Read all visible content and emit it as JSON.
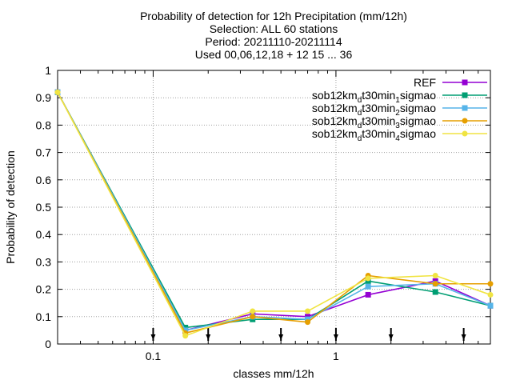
{
  "chart_data": {
    "type": "line",
    "title_lines": [
      "Probability of detection  for 12h Precipitation (mm/12h)",
      "Selection: ALL     60 stations",
      "Period: 20211110-20211114",
      "Used 00,06,12,18 + 12 15 ... 36"
    ],
    "xlabel": "classes mm/12h",
    "ylabel": "Probability of detection",
    "x_scale": "log",
    "xlim": [
      0.03,
      7
    ],
    "ylim": [
      0,
      1
    ],
    "x_ticks": [
      {
        "value": 0.1,
        "label": "0.1"
      },
      {
        "value": 1,
        "label": "1"
      }
    ],
    "y_ticks": [
      {
        "value": 0,
        "label": "0"
      },
      {
        "value": 0.1,
        "label": "0.1"
      },
      {
        "value": 0.2,
        "label": "0.2"
      },
      {
        "value": 0.3,
        "label": "0.3"
      },
      {
        "value": 0.4,
        "label": "0.4"
      },
      {
        "value": 0.5,
        "label": "0.5"
      },
      {
        "value": 0.6,
        "label": "0.6"
      },
      {
        "value": 0.7,
        "label": "0.7"
      },
      {
        "value": 0.8,
        "label": "0.8"
      },
      {
        "value": 0.9,
        "label": "0.9"
      },
      {
        "value": 1,
        "label": "1"
      }
    ],
    "grid": true,
    "legend_position": "top-right",
    "x": [
      0.03,
      0.15,
      0.35,
      0.7,
      1.5,
      3.5,
      7
    ],
    "class_markers": [
      0.1,
      0.2,
      0.5,
      1,
      2,
      5
    ],
    "series": [
      {
        "name": "REF",
        "name_parts": [],
        "color": "#9400d3",
        "marker": "square",
        "values": [
          0.92,
          0.05,
          0.11,
          0.1,
          0.18,
          0.23,
          0.14
        ]
      },
      {
        "name": "sob12km_d_t30min_1_sigmao",
        "name_parts": [
          {
            "t": "sob12km",
            "s": ""
          },
          {
            "t": "d",
            "s": "sub"
          },
          {
            "t": "t30min",
            "s": ""
          },
          {
            "t": "1",
            "s": "sub"
          },
          {
            "t": "sigmao",
            "s": ""
          }
        ],
        "color": "#009e73",
        "marker": "square",
        "values": [
          0.92,
          0.06,
          0.09,
          0.09,
          0.23,
          0.19,
          0.14
        ]
      },
      {
        "name": "sob12km_d_t30min_2_sigmao",
        "name_parts": [
          {
            "t": "sob12km",
            "s": ""
          },
          {
            "t": "d",
            "s": "sub"
          },
          {
            "t": "t30min",
            "s": ""
          },
          {
            "t": "2",
            "s": "sub"
          },
          {
            "t": "sigmao",
            "s": ""
          }
        ],
        "color": "#56b4e9",
        "marker": "square",
        "values": [
          0.92,
          0.05,
          0.1,
          0.09,
          0.21,
          0.22,
          0.14
        ]
      },
      {
        "name": "sob12km_d_t30min_3_sigmao",
        "name_parts": [
          {
            "t": "sob12km",
            "s": ""
          },
          {
            "t": "d",
            "s": "sub"
          },
          {
            "t": "t30min",
            "s": ""
          },
          {
            "t": "3",
            "s": "sub"
          },
          {
            "t": "sigmao",
            "s": ""
          }
        ],
        "color": "#e69f00",
        "marker": "circle",
        "values": [
          0.92,
          0.04,
          0.1,
          0.08,
          0.25,
          0.22,
          0.22
        ]
      },
      {
        "name": "sob12km_d_t30min_4_sigmao",
        "name_parts": [
          {
            "t": "sob12km",
            "s": ""
          },
          {
            "t": "d",
            "s": "sub"
          },
          {
            "t": "t30min",
            "s": ""
          },
          {
            "t": "4",
            "s": "sub"
          },
          {
            "t": "sigmao",
            "s": ""
          }
        ],
        "color": "#f0e442",
        "marker": "circle",
        "values": [
          0.92,
          0.03,
          0.12,
          0.12,
          0.24,
          0.25,
          0.18
        ]
      }
    ]
  }
}
